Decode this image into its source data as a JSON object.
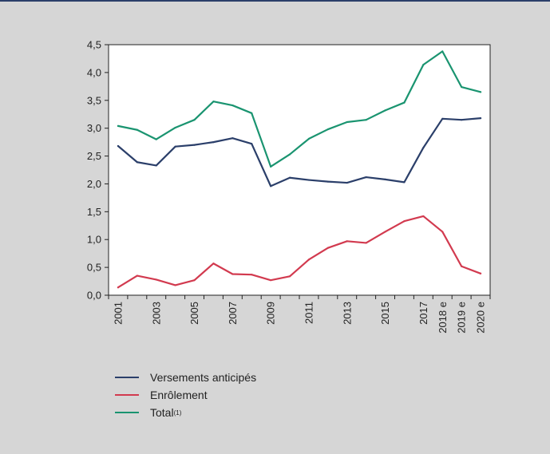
{
  "chart_data": {
    "type": "line",
    "title": "",
    "xlabel": "",
    "ylabel": "",
    "ylim": [
      0,
      4.5
    ],
    "yticks": [
      "0,0",
      "0,5",
      "1,0",
      "1,5",
      "2,0",
      "2,5",
      "3,0",
      "3,5",
      "4,0",
      "4,5"
    ],
    "x": [
      "2001",
      "2002",
      "2003",
      "2004",
      "2005",
      "2006",
      "2007",
      "2008",
      "2009",
      "2010",
      "2011",
      "2012",
      "2013",
      "2014",
      "2015",
      "2016",
      "2017",
      "2018 e",
      "2019 e",
      "2020 e"
    ],
    "xtick_labels": [
      "2001",
      "",
      "2003",
      "",
      "2005",
      "",
      "2007",
      "",
      "2009",
      "",
      "2011",
      "",
      "2013",
      "",
      "2015",
      "",
      "2017",
      "2018 e",
      "2019 e",
      "2020 e"
    ],
    "grid": false,
    "legend_position": "bottom",
    "series": [
      {
        "name": "Versements anticipés",
        "color": "#2b3f6a",
        "values": [
          2.68,
          2.39,
          2.33,
          2.67,
          2.7,
          2.75,
          2.82,
          2.72,
          1.96,
          2.11,
          2.07,
          2.04,
          2.02,
          2.12,
          2.08,
          2.03,
          2.65,
          3.17,
          3.15,
          3.18
        ]
      },
      {
        "name": "Enrôlement",
        "color": "#d23a4f",
        "values": [
          0.14,
          0.35,
          0.28,
          0.18,
          0.27,
          0.57,
          0.38,
          0.37,
          0.27,
          0.34,
          0.64,
          0.85,
          0.97,
          0.94,
          1.14,
          1.33,
          1.42,
          1.14,
          0.52,
          0.39
        ]
      },
      {
        "name": "Total",
        "superscript": "(1)",
        "color": "#1a9470",
        "values": [
          3.04,
          2.97,
          2.8,
          3.01,
          3.15,
          3.48,
          3.41,
          3.27,
          2.31,
          2.53,
          2.81,
          2.98,
          3.11,
          3.15,
          3.32,
          3.46,
          4.14,
          4.38,
          3.74,
          3.65
        ]
      }
    ]
  }
}
